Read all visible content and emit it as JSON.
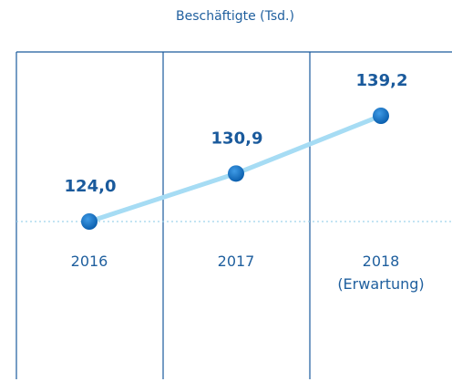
{
  "chart_data": {
    "type": "line",
    "title": "Beschäftigte (Tsd.)",
    "categories": [
      "2016",
      "2017",
      "2018 (Erwartung)"
    ],
    "values": [
      124.0,
      130.9,
      139.2
    ],
    "value_labels": [
      "124,0",
      "130,9",
      "139,2"
    ],
    "line_color": "#a6dcf4",
    "marker_color": "#0f6cc0",
    "label_color": "#1a5a9c"
  }
}
